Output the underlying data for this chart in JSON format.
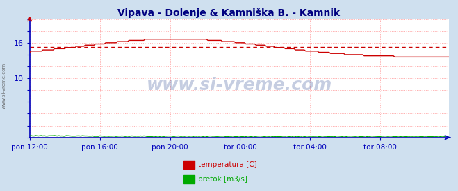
{
  "title": "Vipava - Dolenje & Kamniška B. - Kamnik",
  "title_color": "#000080",
  "bg_color": "#cfe0ef",
  "plot_bg_color": "#ffffff",
  "grid_color": "#ffaaaa",
  "axis_color": "#0000bb",
  "tick_color": "#0000bb",
  "xlim": [
    0,
    287
  ],
  "ylim": [
    0,
    20
  ],
  "ytick_labels_show": {
    "10": 10,
    "16": 16
  },
  "xtick_labels": [
    "pon 12:00",
    "pon 16:00",
    "pon 20:00",
    "tor 00:00",
    "tor 04:00",
    "tor 08:00"
  ],
  "xtick_positions": [
    0,
    48,
    96,
    144,
    192,
    240
  ],
  "avg_temp": 15.3,
  "temp_color": "#cc0000",
  "pretok_color": "#00aa00",
  "watermark": "www.si-vreme.com",
  "watermark_color": "#1a3a8a",
  "watermark_alpha": 0.25,
  "legend_temp_label": "temperatura [C]",
  "legend_pretok_label": "pretok [m3/s]",
  "left_label": "www.si-vreme.com"
}
